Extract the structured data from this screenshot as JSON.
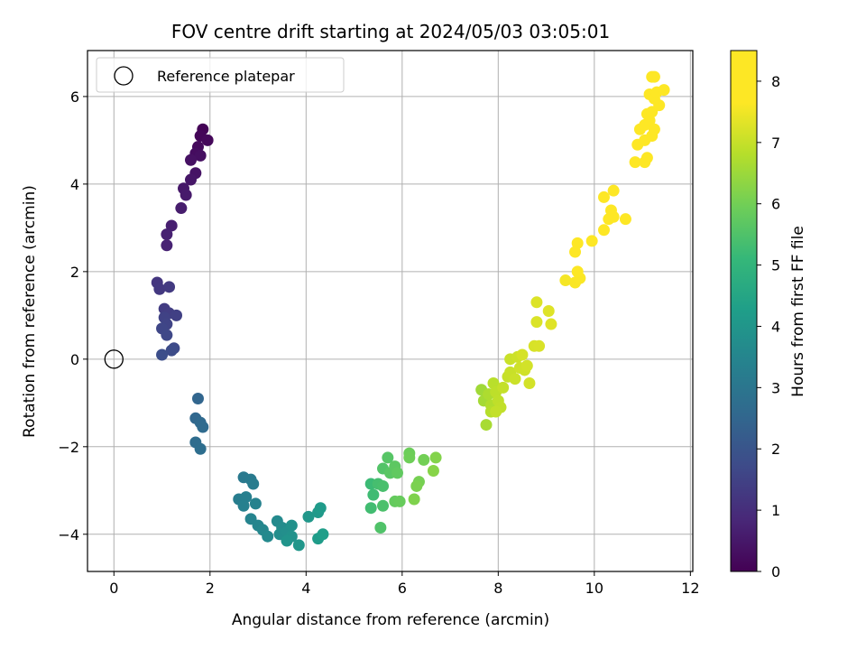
{
  "chart_data": {
    "type": "scatter",
    "title": "FOV centre drift starting at 2024/05/03 03:05:01",
    "xlabel": "Angular distance from reference (arcmin)",
    "ylabel": "Rotation from reference (arcmin)",
    "xlim": [
      -0.55,
      12.05
    ],
    "ylim": [
      -4.85,
      7.05
    ],
    "xticks": [
      0,
      2,
      4,
      6,
      8,
      10,
      12
    ],
    "yticks": [
      -4,
      -2,
      0,
      2,
      4,
      6
    ],
    "ytick_labels": [
      "−4",
      "−2",
      "0",
      "2",
      "4",
      "6"
    ],
    "grid": true,
    "colormap": "viridis",
    "colorbar": {
      "label": "Hours from first FF file",
      "range": [
        0,
        8.5
      ],
      "ticks": [
        0,
        1,
        2,
        3,
        4,
        5,
        6,
        7,
        8
      ]
    },
    "legend": {
      "position": "top-left",
      "entries": [
        "Reference platepar"
      ]
    },
    "reference_point": {
      "x": 0,
      "y": 0
    },
    "points": [
      {
        "x": 1.85,
        "y": 5.25,
        "h": 0.05
      },
      {
        "x": 1.8,
        "y": 5.1,
        "h": 0.1
      },
      {
        "x": 1.95,
        "y": 5.0,
        "h": 0.15
      },
      {
        "x": 1.75,
        "y": 4.85,
        "h": 0.2
      },
      {
        "x": 1.7,
        "y": 4.7,
        "h": 0.25
      },
      {
        "x": 1.8,
        "y": 4.65,
        "h": 0.3
      },
      {
        "x": 1.6,
        "y": 4.55,
        "h": 0.35
      },
      {
        "x": 1.7,
        "y": 4.25,
        "h": 0.4
      },
      {
        "x": 1.6,
        "y": 4.1,
        "h": 0.45
      },
      {
        "x": 1.45,
        "y": 3.9,
        "h": 0.5
      },
      {
        "x": 1.5,
        "y": 3.75,
        "h": 0.55
      },
      {
        "x": 1.4,
        "y": 3.45,
        "h": 0.6
      },
      {
        "x": 1.2,
        "y": 3.05,
        "h": 0.65
      },
      {
        "x": 1.1,
        "y": 2.85,
        "h": 0.7
      },
      {
        "x": 1.1,
        "y": 2.6,
        "h": 0.75
      },
      {
        "x": 0.9,
        "y": 1.75,
        "h": 1.2
      },
      {
        "x": 0.95,
        "y": 1.6,
        "h": 1.25
      },
      {
        "x": 1.15,
        "y": 1.65,
        "h": 1.3
      },
      {
        "x": 1.05,
        "y": 1.15,
        "h": 1.35
      },
      {
        "x": 1.15,
        "y": 1.05,
        "h": 1.4
      },
      {
        "x": 1.3,
        "y": 1.0,
        "h": 1.45
      },
      {
        "x": 1.05,
        "y": 0.95,
        "h": 1.5
      },
      {
        "x": 1.1,
        "y": 0.8,
        "h": 1.55
      },
      {
        "x": 1.0,
        "y": 0.7,
        "h": 1.6
      },
      {
        "x": 1.1,
        "y": 0.55,
        "h": 1.65
      },
      {
        "x": 1.25,
        "y": 0.25,
        "h": 1.7
      },
      {
        "x": 1.2,
        "y": 0.2,
        "h": 1.75
      },
      {
        "x": 1.0,
        "y": 0.1,
        "h": 1.8
      },
      {
        "x": 1.75,
        "y": -0.9,
        "h": 2.5
      },
      {
        "x": 1.7,
        "y": -1.35,
        "h": 2.55
      },
      {
        "x": 1.8,
        "y": -1.45,
        "h": 2.6
      },
      {
        "x": 1.85,
        "y": -1.55,
        "h": 2.65
      },
      {
        "x": 1.7,
        "y": -1.9,
        "h": 2.7
      },
      {
        "x": 1.8,
        "y": -2.05,
        "h": 2.75
      },
      {
        "x": 2.7,
        "y": -2.7,
        "h": 3.1
      },
      {
        "x": 2.85,
        "y": -2.75,
        "h": 3.15
      },
      {
        "x": 2.9,
        "y": -2.85,
        "h": 3.2
      },
      {
        "x": 2.6,
        "y": -3.2,
        "h": 3.25
      },
      {
        "x": 2.75,
        "y": -3.15,
        "h": 3.3
      },
      {
        "x": 2.7,
        "y": -3.35,
        "h": 3.35
      },
      {
        "x": 2.95,
        "y": -3.3,
        "h": 3.4
      },
      {
        "x": 2.85,
        "y": -3.65,
        "h": 3.45
      },
      {
        "x": 3.0,
        "y": -3.8,
        "h": 3.5
      },
      {
        "x": 3.1,
        "y": -3.9,
        "h": 3.55
      },
      {
        "x": 3.2,
        "y": -4.05,
        "h": 3.6
      },
      {
        "x": 3.4,
        "y": -3.7,
        "h": 3.65
      },
      {
        "x": 3.5,
        "y": -3.85,
        "h": 3.7
      },
      {
        "x": 3.45,
        "y": -4.0,
        "h": 3.75
      },
      {
        "x": 3.6,
        "y": -3.95,
        "h": 3.8
      },
      {
        "x": 3.7,
        "y": -3.8,
        "h": 3.85
      },
      {
        "x": 3.7,
        "y": -4.05,
        "h": 3.9
      },
      {
        "x": 3.6,
        "y": -4.15,
        "h": 3.95
      },
      {
        "x": 3.85,
        "y": -4.25,
        "h": 4.0
      },
      {
        "x": 4.05,
        "y": -3.6,
        "h": 4.05
      },
      {
        "x": 4.25,
        "y": -3.5,
        "h": 4.1
      },
      {
        "x": 4.3,
        "y": -3.4,
        "h": 4.15
      },
      {
        "x": 4.25,
        "y": -4.1,
        "h": 4.2
      },
      {
        "x": 4.35,
        "y": -4.0,
        "h": 4.25
      },
      {
        "x": 5.35,
        "y": -2.85,
        "h": 5.2
      },
      {
        "x": 5.4,
        "y": -3.1,
        "h": 5.25
      },
      {
        "x": 5.35,
        "y": -3.4,
        "h": 5.3
      },
      {
        "x": 5.5,
        "y": -2.85,
        "h": 5.35
      },
      {
        "x": 5.6,
        "y": -2.9,
        "h": 5.4
      },
      {
        "x": 5.6,
        "y": -3.35,
        "h": 5.45
      },
      {
        "x": 5.55,
        "y": -3.85,
        "h": 5.5
      },
      {
        "x": 5.6,
        "y": -2.5,
        "h": 5.55
      },
      {
        "x": 5.7,
        "y": -2.25,
        "h": 5.6
      },
      {
        "x": 5.75,
        "y": -2.6,
        "h": 5.65
      },
      {
        "x": 5.85,
        "y": -2.45,
        "h": 5.7
      },
      {
        "x": 5.9,
        "y": -2.6,
        "h": 5.75
      },
      {
        "x": 5.85,
        "y": -3.25,
        "h": 5.8
      },
      {
        "x": 5.95,
        "y": -3.25,
        "h": 5.85
      },
      {
        "x": 6.15,
        "y": -2.15,
        "h": 5.9
      },
      {
        "x": 6.15,
        "y": -2.25,
        "h": 5.95
      },
      {
        "x": 6.45,
        "y": -2.3,
        "h": 6.0
      },
      {
        "x": 6.35,
        "y": -2.8,
        "h": 6.05
      },
      {
        "x": 6.3,
        "y": -2.9,
        "h": 6.1
      },
      {
        "x": 6.25,
        "y": -3.2,
        "h": 6.15
      },
      {
        "x": 6.7,
        "y": -2.25,
        "h": 6.2
      },
      {
        "x": 6.65,
        "y": -2.55,
        "h": 6.25
      },
      {
        "x": 7.65,
        "y": -0.7,
        "h": 6.55
      },
      {
        "x": 7.7,
        "y": -0.95,
        "h": 6.6
      },
      {
        "x": 7.75,
        "y": -1.5,
        "h": 6.65
      },
      {
        "x": 7.8,
        "y": -0.8,
        "h": 6.7
      },
      {
        "x": 7.85,
        "y": -1.05,
        "h": 6.75
      },
      {
        "x": 7.85,
        "y": -1.2,
        "h": 6.8
      },
      {
        "x": 7.9,
        "y": -0.55,
        "h": 6.85
      },
      {
        "x": 7.95,
        "y": -0.75,
        "h": 6.9
      },
      {
        "x": 8.0,
        "y": -0.95,
        "h": 6.92
      },
      {
        "x": 8.05,
        "y": -1.1,
        "h": 6.94
      },
      {
        "x": 7.95,
        "y": -1.2,
        "h": 6.96
      },
      {
        "x": 8.1,
        "y": -0.65,
        "h": 6.98
      },
      {
        "x": 8.2,
        "y": -0.4,
        "h": 7.0
      },
      {
        "x": 8.25,
        "y": -0.3,
        "h": 7.02
      },
      {
        "x": 8.25,
        "y": 0.0,
        "h": 7.04
      },
      {
        "x": 8.35,
        "y": -0.45,
        "h": 7.06
      },
      {
        "x": 8.4,
        "y": 0.05,
        "h": 7.08
      },
      {
        "x": 8.45,
        "y": -0.2,
        "h": 7.1
      },
      {
        "x": 8.55,
        "y": -0.25,
        "h": 7.12
      },
      {
        "x": 8.6,
        "y": -0.15,
        "h": 7.14
      },
      {
        "x": 8.65,
        "y": -0.55,
        "h": 7.16
      },
      {
        "x": 8.5,
        "y": 0.1,
        "h": 7.18
      },
      {
        "x": 8.75,
        "y": 0.3,
        "h": 7.2
      },
      {
        "x": 8.85,
        "y": 0.3,
        "h": 7.22
      },
      {
        "x": 8.8,
        "y": 0.85,
        "h": 7.24
      },
      {
        "x": 8.8,
        "y": 1.3,
        "h": 7.26
      },
      {
        "x": 9.05,
        "y": 1.1,
        "h": 7.28
      },
      {
        "x": 9.1,
        "y": 0.8,
        "h": 7.3
      },
      {
        "x": 9.4,
        "y": 1.8,
        "h": 7.55
      },
      {
        "x": 9.6,
        "y": 1.75,
        "h": 7.6
      },
      {
        "x": 9.7,
        "y": 1.85,
        "h": 7.62
      },
      {
        "x": 9.65,
        "y": 2.0,
        "h": 7.64
      },
      {
        "x": 9.6,
        "y": 2.45,
        "h": 7.66
      },
      {
        "x": 9.65,
        "y": 2.65,
        "h": 7.68
      },
      {
        "x": 9.95,
        "y": 2.7,
        "h": 7.7
      },
      {
        "x": 10.2,
        "y": 2.95,
        "h": 7.72
      },
      {
        "x": 10.3,
        "y": 3.2,
        "h": 7.74
      },
      {
        "x": 10.4,
        "y": 3.25,
        "h": 7.76
      },
      {
        "x": 10.35,
        "y": 3.4,
        "h": 7.78
      },
      {
        "x": 10.65,
        "y": 3.2,
        "h": 7.8
      },
      {
        "x": 10.2,
        "y": 3.7,
        "h": 7.82
      },
      {
        "x": 10.4,
        "y": 3.85,
        "h": 7.84
      },
      {
        "x": 10.85,
        "y": 4.5,
        "h": 8.05
      },
      {
        "x": 11.05,
        "y": 4.5,
        "h": 8.08
      },
      {
        "x": 11.1,
        "y": 4.6,
        "h": 8.1
      },
      {
        "x": 10.9,
        "y": 4.9,
        "h": 8.12
      },
      {
        "x": 11.05,
        "y": 5.0,
        "h": 8.14
      },
      {
        "x": 11.2,
        "y": 5.1,
        "h": 8.16
      },
      {
        "x": 10.95,
        "y": 5.25,
        "h": 8.18
      },
      {
        "x": 11.05,
        "y": 5.35,
        "h": 8.2
      },
      {
        "x": 11.15,
        "y": 5.45,
        "h": 8.22
      },
      {
        "x": 11.25,
        "y": 5.25,
        "h": 8.24
      },
      {
        "x": 11.1,
        "y": 5.6,
        "h": 8.26
      },
      {
        "x": 11.2,
        "y": 5.65,
        "h": 8.28
      },
      {
        "x": 11.35,
        "y": 5.8,
        "h": 8.3
      },
      {
        "x": 11.15,
        "y": 6.05,
        "h": 8.32
      },
      {
        "x": 11.25,
        "y": 5.95,
        "h": 8.34
      },
      {
        "x": 11.3,
        "y": 6.1,
        "h": 8.36
      },
      {
        "x": 11.45,
        "y": 6.15,
        "h": 8.38
      },
      {
        "x": 11.2,
        "y": 6.45,
        "h": 8.4
      },
      {
        "x": 11.25,
        "y": 6.45,
        "h": 8.42
      }
    ]
  }
}
